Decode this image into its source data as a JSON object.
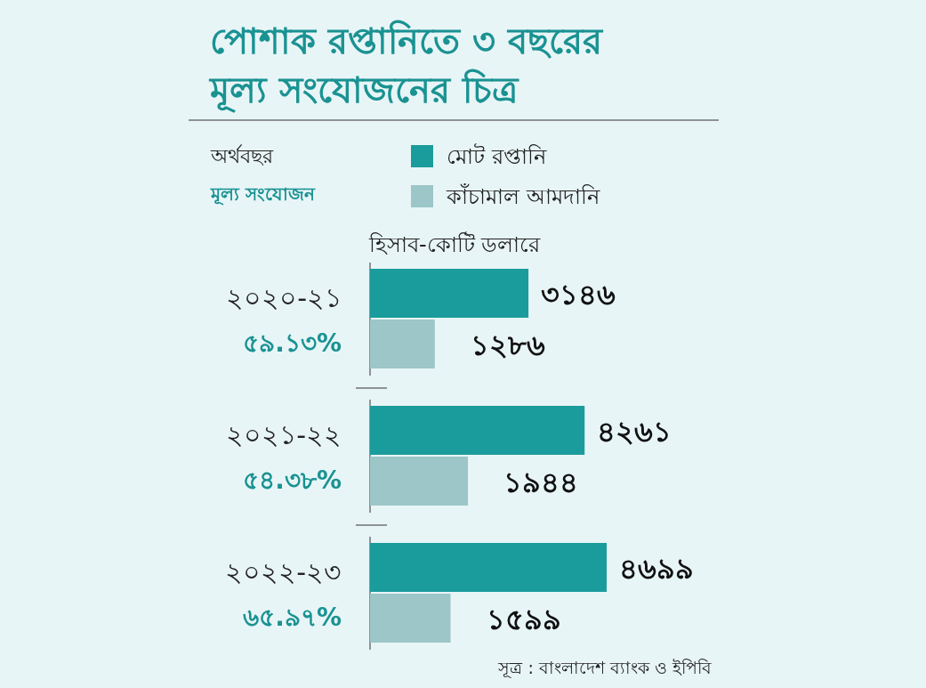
{
  "chart_data": {
    "type": "bar",
    "orientation": "horizontal",
    "title": "পোশাক রপ্তানিতে ৩ বছরের\nমূল্য সংযোজনের চিত্র",
    "categories": [
      "২০২০-২১\n৫৯.১৩%",
      "২০২১-২২\n৫৪.৩৮%",
      "২০২২-২৩\n৬৫.৯৭%"
    ],
    "series": [
      {
        "name": "মোট রপ্তানি",
        "color": "#1b9c9c",
        "values": [
          3146,
          4261,
          4699
        ],
        "value_labels": [
          "৩১৪৬",
          "৪২৬১",
          "৪৬৯৯"
        ]
      },
      {
        "name": "কাঁচামাল আমদানি",
        "color": "#9cc6c7",
        "values": [
          1286,
          1944,
          1599
        ],
        "value_labels": [
          "১২৮৬",
          "১৯৪৪",
          "১৫৯৯"
        ]
      }
    ],
    "legend": "top",
    "annotations": [
      "অর্থবছর",
      "মূল্য সংযোজন",
      "হিসাব-কোটি ডলারে",
      "সূত্র : বাংলাদেশ ব্যাংক ও  ইপিবি"
    ]
  }
}
